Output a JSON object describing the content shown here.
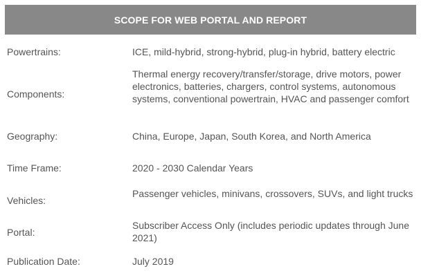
{
  "header": {
    "title": "SCOPE FOR WEB PORTAL AND REPORT"
  },
  "rows": [
    {
      "label": "Powertrains:",
      "value": "ICE, mild-hybrid, strong-hybrid, plug-in hybrid, battery electric"
    },
    {
      "label": "Components:",
      "value": "Thermal energy recovery/transfer/storage, drive motors, power electronics, batteries, chargers, control systems, autonomous systems, conventional powertrain, HVAC and passenger comfort"
    },
    {
      "label": "Geography:",
      "value": "China, Europe, Japan, South Korea, and North America"
    },
    {
      "label": "Time Frame:",
      "value": "2020 - 2030 Calendar Years"
    },
    {
      "label": "Vehicles:",
      "value": "Passenger vehicles, minivans, crossovers, SUVs, and light trucks"
    },
    {
      "label": "Portal:",
      "value": "Subscriber Access Only (includes periodic updates through June 2021)"
    },
    {
      "label": "Publication Date:",
      "value": "July 2019"
    }
  ]
}
